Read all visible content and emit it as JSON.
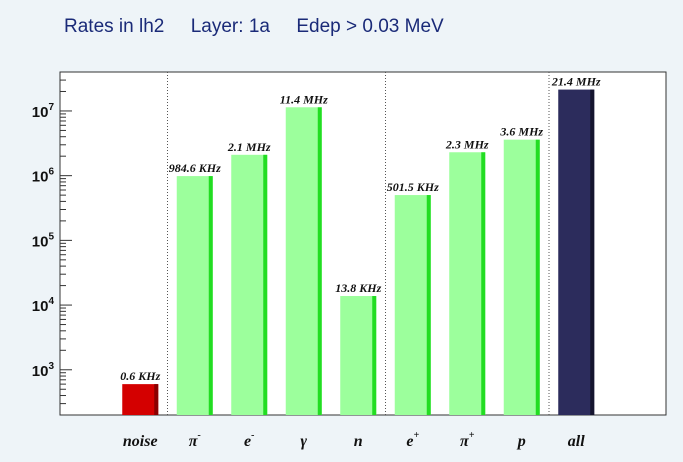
{
  "chart_data": {
    "type": "bar",
    "title": "Rates in lh2     Layer: 1a     Edep > 0.03 MeV",
    "yscale": "log",
    "ylim": [
      200,
      40000000
    ],
    "y_ticks": [
      {
        "value": 1000,
        "base": "10",
        "exp": "3"
      },
      {
        "value": 10000,
        "base": "10",
        "exp": "4"
      },
      {
        "value": 100000,
        "base": "10",
        "exp": "5"
      },
      {
        "value": 1000000,
        "base": "10",
        "exp": "6"
      },
      {
        "value": 10000000,
        "base": "10",
        "exp": "7"
      }
    ],
    "categories": [
      {
        "base": "noise",
        "sup": ""
      },
      {
        "base": "π",
        "sup": "-"
      },
      {
        "base": "e",
        "sup": "-"
      },
      {
        "base": "γ",
        "sup": ""
      },
      {
        "base": "n",
        "sup": ""
      },
      {
        "base": "e",
        "sup": "+"
      },
      {
        "base": "π",
        "sup": "+"
      },
      {
        "base": "p",
        "sup": ""
      },
      {
        "base": "all",
        "sup": ""
      }
    ],
    "values": [
      600,
      984600,
      2100000,
      11400000,
      13800,
      501500,
      2300000,
      3600000,
      21400000
    ],
    "data_labels": [
      "0.6 KHz",
      "984.6 KHz",
      "2.1 MHz",
      "11.4 MHz",
      "13.8 KHz",
      "501.5 KHz",
      "2.3 MHz",
      "3.6 MHz",
      "21.4 MHz"
    ],
    "colors": [
      "#d40000",
      "#9cff9c",
      "#9cff9c",
      "#9cff9c",
      "#9cff9c",
      "#9cff9c",
      "#9cff9c",
      "#9cff9c",
      "#2c2c5c"
    ],
    "edge_colors": [
      "#8a0000",
      "#22dd22",
      "#22dd22",
      "#22dd22",
      "#22dd22",
      "#22dd22",
      "#22dd22",
      "#22dd22",
      "#15152f"
    ],
    "group_separators_after": [
      0,
      4,
      7
    ],
    "grid": false
  }
}
